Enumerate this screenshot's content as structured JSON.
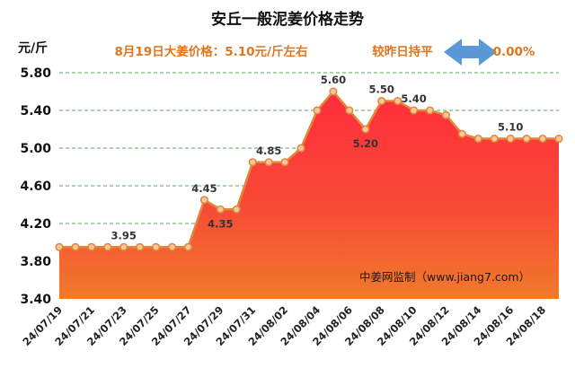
{
  "chart_data": {
    "type": "area",
    "title": "安丘一般泥姜价格走势",
    "subtitle": "8月19日大姜价格：5.10元/斤左右",
    "change_label": "较昨日持平",
    "change_value": "0.00%",
    "ylabel": "元/斤",
    "ylim": [
      3.4,
      5.8
    ],
    "yticks": [
      "3.40",
      "3.80",
      "4.20",
      "4.60",
      "5.00",
      "5.40",
      "5.80"
    ],
    "grid": "horizontal dashed",
    "legend": "none",
    "x": [
      "24/07/19",
      "24/07/20",
      "24/07/21",
      "24/07/22",
      "24/07/23",
      "24/07/24",
      "24/07/25",
      "24/07/26",
      "24/07/27",
      "24/07/28",
      "24/07/29",
      "24/07/30",
      "24/07/31",
      "24/08/01",
      "24/08/02",
      "24/08/03",
      "24/08/04",
      "24/08/05",
      "24/08/06",
      "24/08/07",
      "24/08/08",
      "24/08/09",
      "24/08/10",
      "24/08/11",
      "24/08/12",
      "24/08/13",
      "24/08/14",
      "24/08/15",
      "24/08/16",
      "24/08/17",
      "24/08/18",
      "24/08/19"
    ],
    "xtick_labels": [
      "24/07/19",
      "24/07/21",
      "24/07/23",
      "24/07/25",
      "24/07/27",
      "24/07/29",
      "24/07/31",
      "24/08/02",
      "24/08/04",
      "24/08/06",
      "24/08/08",
      "24/08/10",
      "24/08/12",
      "24/08/14",
      "24/08/16",
      "24/08/18"
    ],
    "values": [
      3.95,
      3.95,
      3.95,
      3.95,
      3.95,
      3.95,
      3.95,
      3.95,
      3.95,
      4.45,
      4.35,
      4.35,
      4.85,
      4.85,
      4.85,
      5.0,
      5.4,
      5.6,
      5.4,
      5.2,
      5.5,
      5.5,
      5.4,
      5.4,
      5.35,
      5.15,
      5.1,
      5.1,
      5.1,
      5.1,
      5.1,
      5.1
    ],
    "data_labels": [
      {
        "index": 4,
        "text": "3.95"
      },
      {
        "index": 9,
        "text": "4.45"
      },
      {
        "index": 10,
        "text": "4.35"
      },
      {
        "index": 13,
        "text": "4.85"
      },
      {
        "index": 17,
        "text": "5.60"
      },
      {
        "index": 19,
        "text": "5.20"
      },
      {
        "index": 20,
        "text": "5.50"
      },
      {
        "index": 22,
        "text": "5.40"
      },
      {
        "index": 28,
        "text": "5.10"
      }
    ],
    "watermark": "中姜网监制（www.jiang7.com）",
    "colors": {
      "fill_top": "#ff2d3c",
      "fill_bottom": "#f07a2a",
      "line": "#e3863a",
      "marker_fill": "#f6c79a",
      "grid": "#5aa857",
      "arrow": "#5a98d8",
      "subtitle": "#e0751f"
    }
  }
}
